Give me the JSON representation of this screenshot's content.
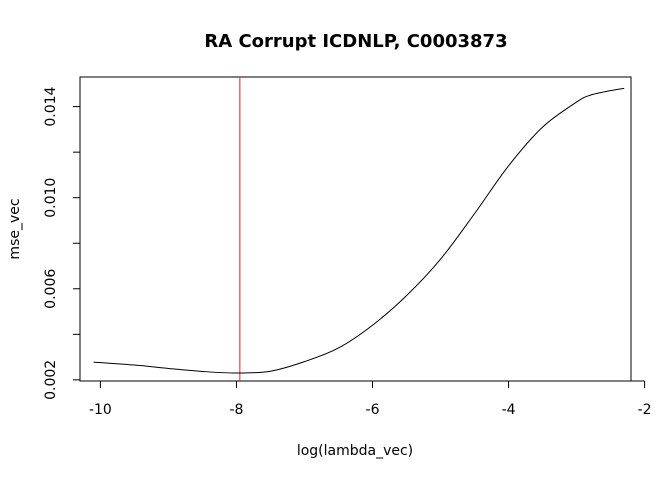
{
  "chart_data": {
    "type": "line",
    "title": "RA  Corrupt ICDNLP,  C0003873",
    "xlabel": "log(lambda_vec)",
    "ylabel": "mse_vec",
    "xlim": [
      -10.3,
      -2.2
    ],
    "ylim": [
      0.00195,
      0.0153
    ],
    "x_ticks": [
      -10,
      -8,
      -6,
      -4,
      -2
    ],
    "x_tick_labels": [
      "-10",
      "-8",
      "-6",
      "-4",
      "-2"
    ],
    "y_ticks": [
      0.002,
      0.004,
      0.006,
      0.008,
      0.01,
      0.012,
      0.014
    ],
    "y_tick_labels": [
      "0.002",
      "",
      "0.006",
      "",
      "0.010",
      "",
      "0.014"
    ],
    "grid": false,
    "legend": "none",
    "vline": {
      "x": -7.95,
      "color": "#e0202e"
    },
    "series": [
      {
        "color": "#000000",
        "x": [
          -10.1,
          -9.5,
          -9.0,
          -8.5,
          -8.0,
          -7.5,
          -7.0,
          -6.5,
          -6.0,
          -5.5,
          -5.0,
          -4.5,
          -4.0,
          -3.5,
          -3.0,
          -2.8,
          -2.5,
          -2.3
        ],
        "y": [
          0.00278,
          0.00265,
          0.0025,
          0.00237,
          0.0023,
          0.00238,
          0.0028,
          0.0034,
          0.0044,
          0.0057,
          0.0073,
          0.0093,
          0.0114,
          0.0131,
          0.0142,
          0.0145,
          0.0147,
          0.0148
        ]
      }
    ]
  }
}
